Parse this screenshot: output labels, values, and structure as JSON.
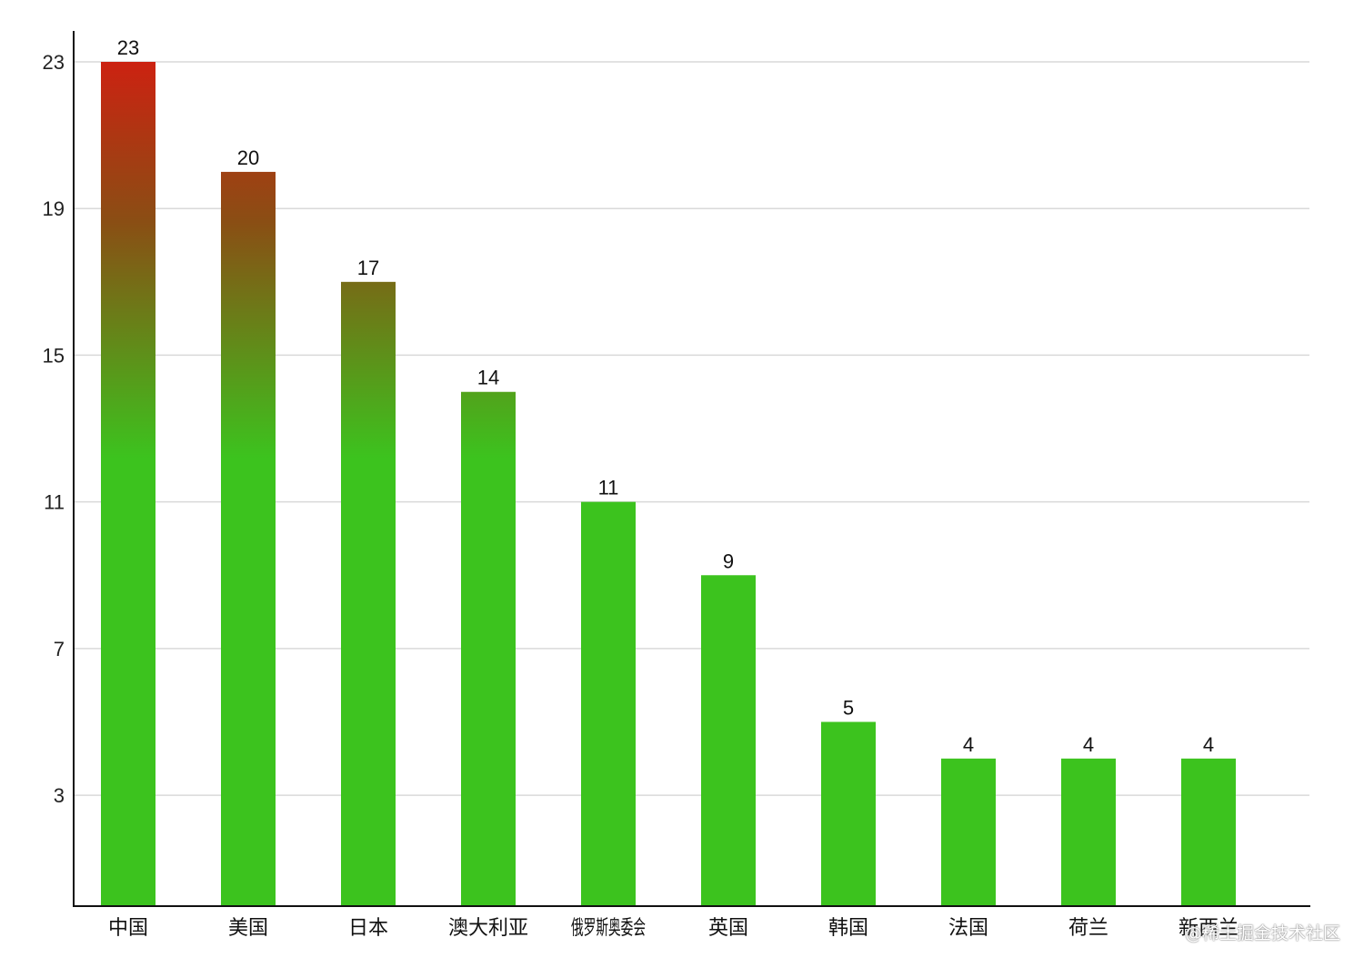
{
  "chart_data": {
    "type": "bar",
    "categories": [
      "中国",
      "美国",
      "日本",
      "澳大利亚",
      "俄罗斯奥委会",
      "英国",
      "韩国",
      "法国",
      "荷兰",
      "新西兰"
    ],
    "values": [
      23,
      20,
      17,
      14,
      11,
      9,
      5,
      4,
      4,
      4
    ],
    "yticks": [
      3,
      7,
      11,
      15,
      19,
      23
    ],
    "ylim": [
      0,
      23
    ],
    "grid": true,
    "colors": {
      "bar_top": "#cc2211",
      "bar_mid": "#8a4e14",
      "bar_base": "#3cc31e",
      "grid": "#d9d9d9",
      "axis": "#111111"
    }
  },
  "watermark": "@稀土掘金技术社区"
}
